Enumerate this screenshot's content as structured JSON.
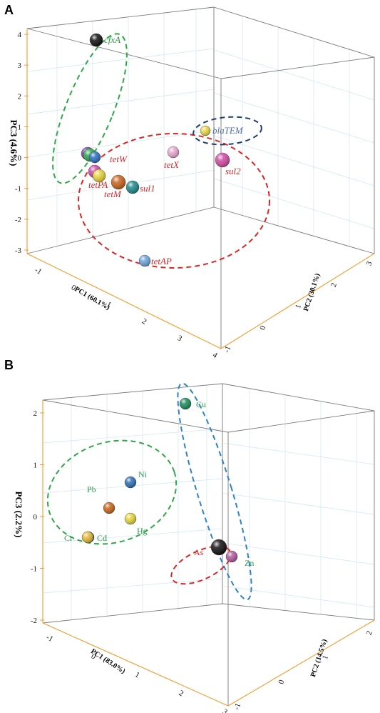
{
  "chart_data": [
    {
      "panel": "A",
      "type": "scatter3d",
      "xlabel": "PC1 (60.1%)",
      "ylabel": "PC2 (30.1%)",
      "zlabel": "PC3 (4.6%)",
      "z_ticks": [
        "4",
        "3",
        "2",
        "1",
        "0",
        "-1",
        "-2",
        "-3"
      ],
      "x_ticks": [
        "-1",
        "0",
        "1",
        "2",
        "3",
        "4"
      ],
      "y_ticks": [
        "-1",
        "0",
        "1",
        "2",
        "3"
      ],
      "points": [
        {
          "label": "cfxA",
          "color": "#111111",
          "label_color": "#2e9c46",
          "z": 3.8
        },
        {
          "label": "blaTEM",
          "color": "#e9d84a",
          "label_color": "#4f6fa6",
          "z": 1.0
        },
        {
          "label": "tetX",
          "color": "#e8a8d0",
          "label_color": "#d22a2a",
          "z": 0.3
        },
        {
          "label": "sul2",
          "color": "#d24aa3",
          "label_color": "#d22a2a",
          "z": 0.1
        },
        {
          "label": "tetW",
          "color": "#c84aa6",
          "label_color": "#d22a2a",
          "z": -0.1
        },
        {
          "label": "tetPA",
          "color": "#e5d43a",
          "label_color": "#d22a2a",
          "z": -0.4
        },
        {
          "label": "tetM",
          "color": "#c8641c",
          "label_color": "#d22a2a",
          "z": -0.6
        },
        {
          "label": "sul1",
          "color": "#1e8a8a",
          "label_color": "#d22a2a",
          "z": -0.7
        },
        {
          "label": "tetAP",
          "color": "#6ea6dc",
          "label_color": "#d22a2a",
          "z": -3.2
        },
        {
          "label": "",
          "color": "#7a3fa8",
          "label_color": "#000000",
          "z": 0.3
        },
        {
          "label": "",
          "color": "#2ea848",
          "label_color": "#000000",
          "z": 0.25
        },
        {
          "label": "",
          "color": "#2d6fc0",
          "label_color": "#000000",
          "z": 0.1
        }
      ],
      "groups": [
        {
          "color": "#2ea848"
        },
        {
          "color": "#e02424"
        },
        {
          "color": "#1f3e6e"
        }
      ]
    },
    {
      "panel": "B",
      "type": "scatter3d",
      "xlabel": "PC1 (83.0%)",
      "ylabel": "PC2 (14.5%)",
      "zlabel": "PC3 (2.2%)",
      "z_ticks": [
        "2",
        "1",
        "0",
        "-1",
        "-2"
      ],
      "x_ticks": [
        "-1",
        "0",
        "1",
        "2",
        "3"
      ],
      "y_ticks": [
        "-1",
        "0",
        "1",
        "2"
      ],
      "points": [
        {
          "label": "Cu",
          "color": "#1e8a5a",
          "label_color": "#2e9c46",
          "z": 2.0
        },
        {
          "label": "Ni",
          "color": "#2d6fb5",
          "label_color": "#2e9c46",
          "z": 0.7
        },
        {
          "label": "Pb",
          "color": "#c8641c",
          "label_color": "#2e9c46",
          "z": 0.1
        },
        {
          "label": "Hg",
          "color": "#e5d43a",
          "label_color": "#2e9c46",
          "z": -0.1
        },
        {
          "label": "Cr",
          "color": "#2d6fb5",
          "label_color": "#2e9c46",
          "z": -0.5
        },
        {
          "label": "Cd",
          "color": "#e5b83a",
          "label_color": "#2e9c46",
          "z": -0.5
        },
        {
          "label": "As",
          "color": "#111111",
          "label_color": "#e02424",
          "z": -0.6
        },
        {
          "label": "Zn",
          "color": "#b05a9a",
          "label_color": "#2e9c46",
          "z": -0.9
        }
      ],
      "groups": [
        {
          "color": "#2ea848"
        },
        {
          "color": "#2d82c8"
        },
        {
          "color": "#e02424"
        }
      ]
    }
  ],
  "panels": {
    "a_letter": "A",
    "b_letter": "B"
  }
}
